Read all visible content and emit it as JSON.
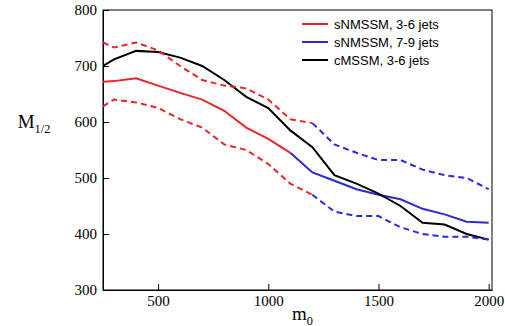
{
  "chart_data": {
    "type": "line",
    "x_label": "m0",
    "y_label": "M1/2",
    "x": [
      250,
      300,
      400,
      500,
      600,
      700,
      800,
      900,
      1000,
      1100,
      1200,
      1300,
      1400,
      1500,
      1600,
      1700,
      1800,
      1900,
      2000
    ],
    "xlim": [
      250,
      2015
    ],
    "xticks": [
      500,
      1000,
      1500,
      2000
    ],
    "ylim": [
      300,
      800
    ],
    "yticks": [
      300,
      400,
      500,
      600,
      700,
      800
    ],
    "grid": false,
    "legend": "upper right",
    "series": [
      {
        "name": "sNMSSM, 3-6 jets",
        "color": "#e8262a",
        "line_style": "solid",
        "values": [
          672,
          673,
          678,
          665,
          652,
          640,
          620,
          590,
          570,
          545,
          null,
          null,
          null,
          null,
          null,
          null,
          null,
          null,
          null
        ]
      },
      {
        "name": "sNMSSM, 7-9 jets",
        "color": "#2a2ad8",
        "line_style": "solid",
        "values": [
          null,
          null,
          null,
          null,
          null,
          null,
          null,
          null,
          null,
          545,
          510,
          495,
          480,
          470,
          462,
          445,
          435,
          422,
          420
        ]
      },
      {
        "name": "cMSSM, 3-6 jets",
        "color": "#000000",
        "line_style": "solid",
        "values": [
          700,
          712,
          727,
          725,
          715,
          700,
          675,
          645,
          625,
          585,
          555,
          505,
          490,
          472,
          450,
          420,
          417,
          400,
          390
        ]
      },
      {
        "color": "#e8262a",
        "line_style": "dashed",
        "values": [
          742,
          733,
          742,
          728,
          700,
          675,
          665,
          660,
          640,
          605,
          598,
          null,
          null,
          null,
          null,
          null,
          null,
          null,
          null
        ]
      },
      {
        "color": "#e8262a",
        "line_style": "dashed",
        "values": [
          628,
          640,
          635,
          625,
          605,
          590,
          560,
          550,
          525,
          490,
          470,
          null,
          null,
          null,
          null,
          null,
          null,
          null,
          null
        ]
      },
      {
        "color": "#2a2ad8",
        "line_style": "dashed",
        "values": [
          null,
          null,
          null,
          null,
          null,
          null,
          null,
          null,
          null,
          null,
          598,
          560,
          545,
          532,
          532,
          515,
          505,
          500,
          480
        ]
      },
      {
        "color": "#2a2ad8",
        "line_style": "dashed",
        "values": [
          null,
          null,
          null,
          null,
          null,
          null,
          null,
          null,
          null,
          null,
          470,
          440,
          432,
          432,
          412,
          400,
          395,
          395,
          390
        ]
      }
    ]
  }
}
